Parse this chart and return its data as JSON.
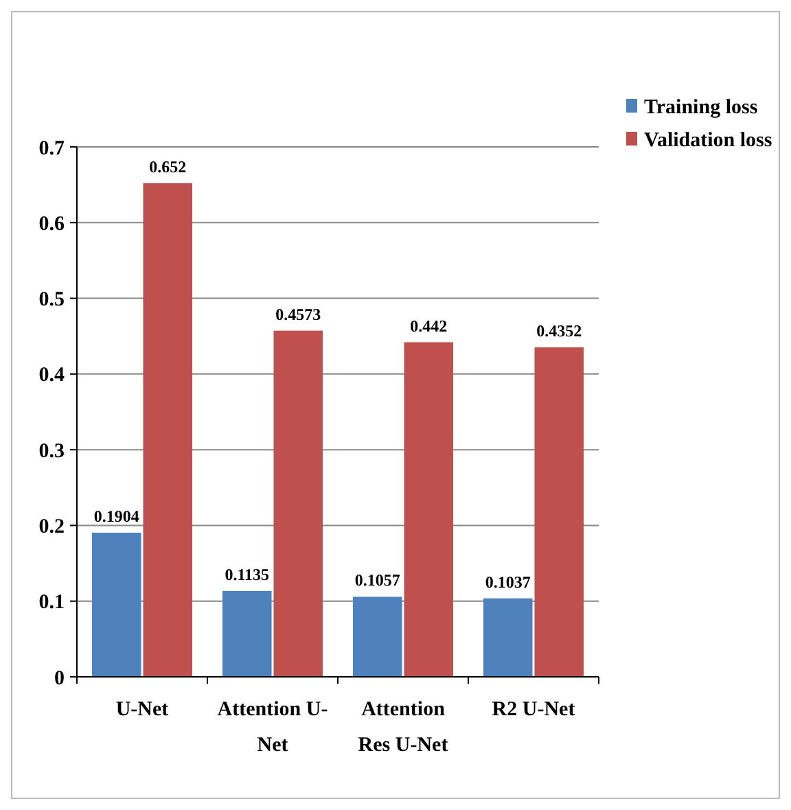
{
  "chart_data": {
    "type": "bar",
    "categories": [
      "U-Net",
      "Attention U-Net",
      "Attention Res U-Net",
      "R2 U-Net"
    ],
    "series": [
      {
        "name": "Training loss",
        "color": "#4f81bd",
        "values": [
          0.1904,
          0.1135,
          0.1057,
          0.1037
        ]
      },
      {
        "name": "Validation loss",
        "color": "#c0504d",
        "values": [
          0.652,
          0.4573,
          0.442,
          0.4352
        ]
      }
    ],
    "ylim": [
      0,
      0.7
    ],
    "yticks": [
      0,
      0.1,
      0.2,
      0.3,
      0.4,
      0.5,
      0.6,
      0.7
    ],
    "grid": "y",
    "legend": "top right",
    "data_labels": true
  }
}
